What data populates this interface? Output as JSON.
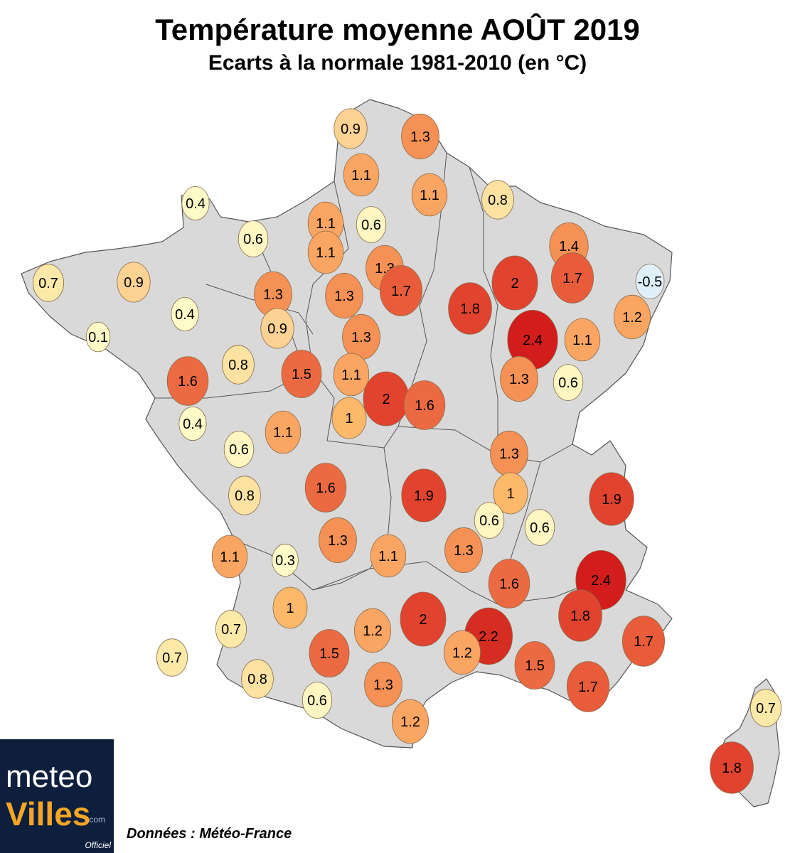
{
  "title": "Température moyenne AOÛT 2019",
  "subtitle": "Ecarts à la normale 1981-2010 (en °C)",
  "source": "Données : Météo-France",
  "logo": {
    "meteo": "meteo",
    "villes": "Villes",
    "com": ".com",
    "officiel": "Officiel"
  },
  "colors": {
    "land": "#d9d9d9",
    "border": "#555555",
    "scale": [
      {
        "max": -0.01,
        "color": "#dff0fb"
      },
      {
        "max": 0.45,
        "color": "#fffbc8"
      },
      {
        "max": 0.65,
        "color": "#fff6c1"
      },
      {
        "max": 0.75,
        "color": "#fce9a8"
      },
      {
        "max": 0.85,
        "color": "#fde2a2"
      },
      {
        "max": 0.95,
        "color": "#fdd292"
      },
      {
        "max": 1.05,
        "color": "#fdb86a"
      },
      {
        "max": 1.25,
        "color": "#fba562"
      },
      {
        "max": 1.45,
        "color": "#f59154"
      },
      {
        "max": 1.65,
        "color": "#ec6a42"
      },
      {
        "max": 1.75,
        "color": "#e95c3a"
      },
      {
        "max": 2.05,
        "color": "#e1432e"
      },
      {
        "max": 2.25,
        "color": "#d62d22"
      },
      {
        "max": 9,
        "color": "#d31c1c"
      }
    ]
  },
  "stations": [
    {
      "label": "0.9",
      "value": 0.9
    },
    {
      "label": "1.3",
      "value": 1.3
    },
    {
      "label": "1.1",
      "value": 1.1
    },
    {
      "label": "1.1",
      "value": 1.1
    },
    {
      "label": "0.8",
      "value": 0.8
    },
    {
      "label": "0.4",
      "value": 0.4
    },
    {
      "label": "0.6",
      "value": 0.6
    },
    {
      "label": "1.1",
      "value": 1.1
    },
    {
      "label": "0.6",
      "value": 0.6
    },
    {
      "label": "1.4",
      "value": 1.4
    },
    {
      "label": "1.1",
      "value": 1.1
    },
    {
      "label": "1.3",
      "value": 1.3
    },
    {
      "label": "1.3",
      "value": 1.3
    },
    {
      "label": "1.7",
      "value": 1.7
    },
    {
      "label": "2",
      "value": 2
    },
    {
      "label": "1.7",
      "value": 1.7
    },
    {
      "label": "-0.5",
      "value": -0.5
    },
    {
      "label": "0.7",
      "value": 0.7
    },
    {
      "label": "0.9",
      "value": 0.9
    },
    {
      "label": "1.3",
      "value": 1.3
    },
    {
      "label": "1.8",
      "value": 1.8
    },
    {
      "label": "1.2",
      "value": 1.2
    },
    {
      "label": "0.4",
      "value": 0.4
    },
    {
      "label": "0.9",
      "value": 0.9
    },
    {
      "label": "1.3",
      "value": 1.3
    },
    {
      "label": "2.4",
      "value": 2.4
    },
    {
      "label": "1.1",
      "value": 1.1
    },
    {
      "label": "0.1",
      "value": 0.1
    },
    {
      "label": "0.8",
      "value": 0.8
    },
    {
      "label": "1.5",
      "value": 1.5
    },
    {
      "label": "1.1",
      "value": 1.1
    },
    {
      "label": "2",
      "value": 2
    },
    {
      "label": "1.6",
      "value": 1.6
    },
    {
      "label": "1.3",
      "value": 1.3
    },
    {
      "label": "0.6",
      "value": 0.6
    },
    {
      "label": "1.6",
      "value": 1.6
    },
    {
      "label": "0.4",
      "value": 0.4
    },
    {
      "label": "1",
      "value": 1
    },
    {
      "label": "1.1",
      "value": 1.1
    },
    {
      "label": "0.6",
      "value": 0.6
    },
    {
      "label": "1.3",
      "value": 1.3
    },
    {
      "label": "1.6",
      "value": 1.6
    },
    {
      "label": "1.9",
      "value": 1.9
    },
    {
      "label": "1",
      "value": 1
    },
    {
      "label": "1.9",
      "value": 1.9
    },
    {
      "label": "0.8",
      "value": 0.8
    },
    {
      "label": "0.6",
      "value": 0.6
    },
    {
      "label": "0.6",
      "value": 0.6
    },
    {
      "label": "1.3",
      "value": 1.3
    },
    {
      "label": "1.1",
      "value": 1.1
    },
    {
      "label": "0.3",
      "value": 0.3
    },
    {
      "label": "1.3",
      "value": 1.3
    },
    {
      "label": "1.1",
      "value": 1.1
    },
    {
      "label": "2.4",
      "value": 2.4
    },
    {
      "label": "1.6",
      "value": 1.6
    },
    {
      "label": "1",
      "value": 1
    },
    {
      "label": "0.7",
      "value": 0.7
    },
    {
      "label": "1.2",
      "value": 1.2
    },
    {
      "label": "2",
      "value": 2
    },
    {
      "label": "1.8",
      "value": 1.8
    },
    {
      "label": "2.2",
      "value": 2.2
    },
    {
      "label": "1.7",
      "value": 1.7
    },
    {
      "label": "0.7",
      "value": 0.7
    },
    {
      "label": "1.5",
      "value": 1.5
    },
    {
      "label": "1.2",
      "value": 1.2
    },
    {
      "label": "1.5",
      "value": 1.5
    },
    {
      "label": "0.8",
      "value": 0.8
    },
    {
      "label": "1.3",
      "value": 1.3
    },
    {
      "label": "1.7",
      "value": 1.7
    },
    {
      "label": "0.6",
      "value": 0.6
    },
    {
      "label": "0.7",
      "value": 0.7
    },
    {
      "label": "1.2",
      "value": 1.2
    },
    {
      "label": "1.8",
      "value": 1.8
    }
  ]
}
